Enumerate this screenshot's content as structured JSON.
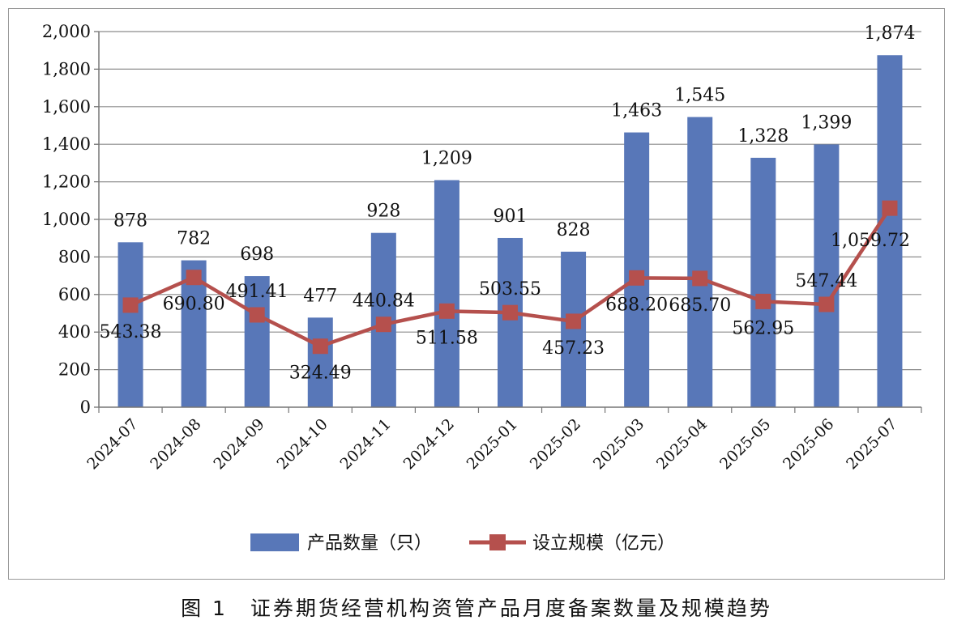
{
  "caption": "图 1　证券期货经营机构资管产品月度备案数量及规模趋势",
  "chart_data": {
    "type": "bar",
    "categories": [
      "2024-07",
      "2024-08",
      "2024-09",
      "2024-10",
      "2024-11",
      "2024-12",
      "2025-01",
      "2025-02",
      "2025-03",
      "2025-04",
      "2025-05",
      "2025-06",
      "2025-07"
    ],
    "series": [
      {
        "name": "产品数量（只）",
        "type": "bar",
        "color": "#5877b8",
        "values": [
          878,
          782,
          698,
          477,
          928,
          1209,
          901,
          828,
          1463,
          1545,
          1328,
          1399,
          1874
        ],
        "labels": [
          "878",
          "782",
          "698",
          "477",
          "928",
          "1,209",
          "901",
          "828",
          "1,463",
          "1,545",
          "1,328",
          "1,399",
          "1,874"
        ]
      },
      {
        "name": "设立规模（亿元）",
        "type": "line",
        "color": "#b5504d",
        "values": [
          543.38,
          690.8,
          491.41,
          324.49,
          440.84,
          511.58,
          503.55,
          457.23,
          688.2,
          685.7,
          562.95,
          547.44,
          1059.72
        ],
        "labels": [
          "543.38",
          "690.80",
          "491.41",
          "324.49",
          "440.84",
          "511.58",
          "503.55",
          "457.23",
          "688.20",
          "685.70",
          "562.95",
          "547.44",
          "1,059.72"
        ]
      }
    ],
    "y_ticks": [
      "0",
      "200",
      "400",
      "600",
      "800",
      "1,000",
      "1,200",
      "1,400",
      "1,600",
      "1,800",
      "2,000"
    ],
    "ylim": [
      0,
      2000
    ],
    "grid": true,
    "legend_position": "bottom"
  }
}
